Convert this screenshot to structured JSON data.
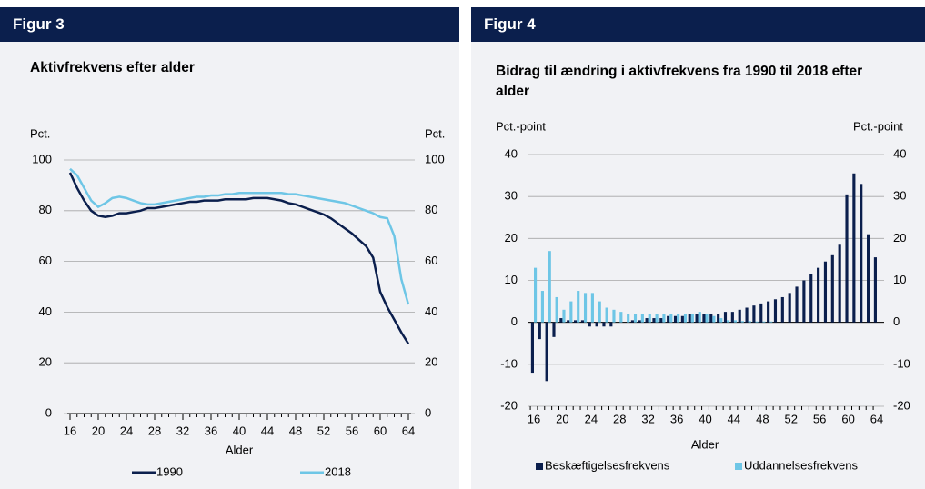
{
  "chart_data": [
    {
      "type": "line",
      "figure_label": "Figur 3",
      "title": "Aktivfrekvens efter alder",
      "y_label": "Pct.",
      "y2_label": "Pct.",
      "x_label": "Alder",
      "x": [
        16,
        17,
        18,
        19,
        20,
        21,
        22,
        23,
        24,
        25,
        26,
        27,
        28,
        29,
        30,
        31,
        32,
        33,
        34,
        35,
        36,
        37,
        38,
        39,
        40,
        41,
        42,
        43,
        44,
        45,
        46,
        47,
        48,
        49,
        50,
        51,
        52,
        53,
        54,
        55,
        56,
        57,
        58,
        59,
        60,
        61,
        62,
        63,
        64
      ],
      "xlim": [
        16,
        64
      ],
      "xticks": [
        16,
        20,
        24,
        28,
        32,
        36,
        40,
        44,
        48,
        52,
        56,
        60,
        64
      ],
      "ylim": [
        0,
        100
      ],
      "yticks": [
        0,
        20,
        40,
        60,
        80,
        100
      ],
      "grid": true,
      "series": [
        {
          "name": "1990",
          "color": "#0b1f4d",
          "values": [
            95,
            89,
            84,
            80,
            78,
            77.5,
            78,
            79,
            79,
            79.5,
            80,
            81,
            81,
            81.5,
            82,
            82.5,
            83,
            83.5,
            83.5,
            84,
            84,
            84,
            84.5,
            84.5,
            84.5,
            84.5,
            85,
            85,
            85,
            84.5,
            84,
            83,
            82.5,
            81.5,
            80.5,
            79.5,
            78.5,
            77,
            75,
            73,
            71,
            68.5,
            66,
            61.5,
            48,
            42,
            37,
            32,
            27.5
          ]
        },
        {
          "name": "2018",
          "color": "#6ec6e6",
          "values": [
            96.5,
            94,
            89,
            84,
            81.5,
            83,
            85,
            85.5,
            85,
            84,
            83,
            82.5,
            82.5,
            83,
            83.5,
            84,
            84.5,
            85,
            85.5,
            85.5,
            86,
            86,
            86.5,
            86.5,
            87,
            87,
            87,
            87,
            87,
            87,
            87,
            86.5,
            86.5,
            86,
            85.5,
            85,
            84.5,
            84,
            83.5,
            83,
            82,
            81,
            80,
            79,
            77.5,
            77,
            70,
            53,
            43
          ]
        }
      ]
    },
    {
      "type": "bar",
      "figure_label": "Figur 4",
      "title": "Bidrag til ændring i aktivfrekvens fra 1990 til 2018 efter alder",
      "y_label": "Pct.-point",
      "y2_label": "Pct.-point",
      "x_label": "Alder",
      "categories": [
        "16",
        null,
        null,
        null,
        "20",
        null,
        null,
        null,
        "24",
        null,
        null,
        null,
        "28",
        null,
        null,
        null,
        "32",
        null,
        null,
        null,
        "36",
        null,
        null,
        null,
        "40",
        null,
        null,
        null,
        "44",
        null,
        null,
        null,
        "48",
        null,
        null,
        null,
        "52",
        null,
        null,
        null,
        "56",
        null,
        null,
        null,
        "60",
        null,
        null,
        null,
        "64"
      ],
      "ylim": [
        -20,
        40
      ],
      "yticks": [
        -20,
        -10,
        0,
        10,
        20,
        30,
        40
      ],
      "grid": true,
      "series": [
        {
          "name": "Beskæftigelsesfrekvens",
          "color": "#0b1f4d",
          "values": [
            -12,
            -4,
            -14,
            -3.5,
            1,
            0.5,
            0.5,
            0.5,
            -1,
            -1,
            -1,
            -1,
            0,
            0,
            0.5,
            0.5,
            1,
            1,
            1,
            1.5,
            1.5,
            1.5,
            2,
            2,
            2,
            2,
            2,
            2.5,
            2.5,
            3,
            3.5,
            4,
            4.5,
            5,
            5.5,
            6,
            7,
            8.5,
            10,
            11.5,
            13,
            14.5,
            16,
            18.5,
            30.5,
            35.5,
            33,
            21,
            15.5
          ]
        },
        {
          "name": "Uddannelsesfrekvens",
          "color": "#6ec6e6",
          "values": [
            13,
            7.5,
            17,
            6,
            3,
            5,
            7.5,
            7,
            7,
            5,
            3.5,
            3,
            2.5,
            2,
            2,
            2,
            2,
            2,
            2,
            2,
            2,
            2,
            2,
            2.5,
            2,
            1.5,
            1,
            0.5,
            0.5,
            0.3,
            0.3,
            0.2,
            0.2,
            0.2,
            0,
            0,
            0,
            0,
            0,
            0,
            0,
            0,
            0,
            0,
            0,
            0,
            0,
            0,
            0
          ]
        }
      ]
    }
  ]
}
